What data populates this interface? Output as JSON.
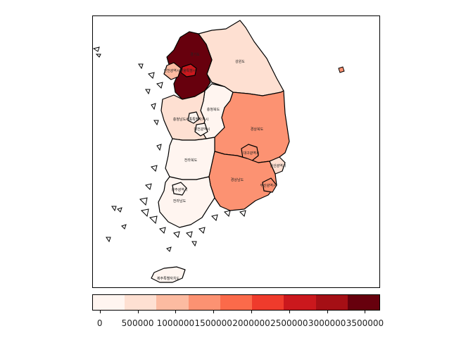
{
  "regions": [
    {
      "id": "gyeonggi",
      "label": "경기도",
      "value": 3500000,
      "color": "#67000d"
    },
    {
      "id": "seoul",
      "label": "서울특별시",
      "value": 1700000,
      "color": "#cb181d"
    },
    {
      "id": "incheon",
      "label": "인천광역시",
      "value": 900000,
      "color": "#fcbba1"
    },
    {
      "id": "gangwon",
      "label": "강원도",
      "value": 450000,
      "color": "#fee0d2"
    },
    {
      "id": "chungbuk",
      "label": "충청북도",
      "value": 300000,
      "color": "#fff5f0"
    },
    {
      "id": "chungnam",
      "label": "충청남도",
      "value": 500000,
      "color": "#fee0d2"
    },
    {
      "id": "sejong",
      "label": "세종특별자치시",
      "value": 100000,
      "color": "#fff5f0"
    },
    {
      "id": "daejeon",
      "label": "대전광역시",
      "value": 200000,
      "color": "#fff5f0"
    },
    {
      "id": "gyeongbuk",
      "label": "경상북도",
      "value": 1300000,
      "color": "#fc9272"
    },
    {
      "id": "daegu",
      "label": "대구광역시",
      "value": 1400000,
      "color": "#fc9272"
    },
    {
      "id": "jeonbuk",
      "label": "전라북도",
      "value": 200000,
      "color": "#fff5f0"
    },
    {
      "id": "gyeongnam",
      "label": "경상남도",
      "value": 1300000,
      "color": "#fc9272"
    },
    {
      "id": "ulsan",
      "label": "울산광역시",
      "value": 600000,
      "color": "#fee0d2"
    },
    {
      "id": "busan",
      "label": "부산광역시",
      "value": 1400000,
      "color": "#fc9272"
    },
    {
      "id": "gwangju",
      "label": "광주광역시",
      "value": 200000,
      "color": "#fff5f0"
    },
    {
      "id": "jeonnam",
      "label": "전라남도",
      "value": 150000,
      "color": "#fff5f0"
    },
    {
      "id": "jeju",
      "label": "제주특별자치도",
      "value": 100000,
      "color": "#fff5f0"
    }
  ],
  "legend": {
    "colors": [
      "#fff5f0",
      "#fee0d2",
      "#fcbba1",
      "#fc9272",
      "#fb6a4a",
      "#ef3b2c",
      "#cb181d",
      "#a50f15",
      "#67000d"
    ],
    "range": [
      -100000,
      3700000
    ],
    "ticks": [
      {
        "value": 0,
        "label": "0"
      },
      {
        "value": 500000,
        "label": "500000"
      },
      {
        "value": 1000000,
        "label": "1000000"
      },
      {
        "value": 1500000,
        "label": "1500000"
      },
      {
        "value": 2000000,
        "label": "2000000"
      },
      {
        "value": 2500000,
        "label": "2500000"
      },
      {
        "value": 3000000,
        "label": "3000000"
      },
      {
        "value": 3500000,
        "label": "3500000"
      }
    ]
  }
}
